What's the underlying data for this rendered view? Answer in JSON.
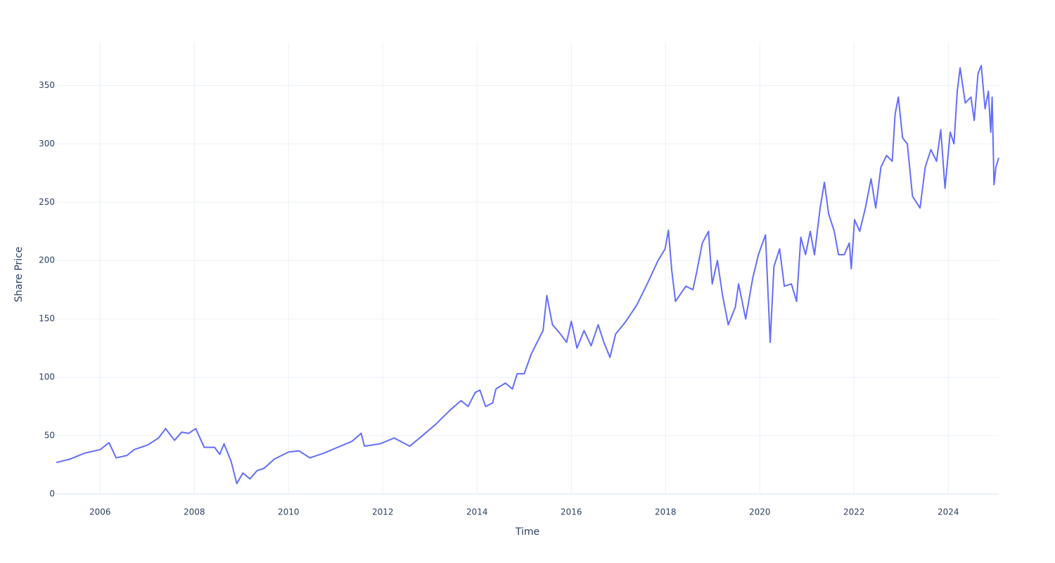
{
  "chart_data": {
    "type": "line",
    "x_label": "Time",
    "y_label": "Share Price",
    "color": "#636efa",
    "grid": true,
    "xlim": [
      2005.07,
      2025.07
    ],
    "xticks": [
      2006,
      2008,
      2010,
      2012,
      2014,
      2016,
      2018,
      2020,
      2022,
      2024
    ],
    "ylim": [
      0,
      387
    ],
    "yticks": [
      0,
      50,
      100,
      150,
      200,
      250,
      300,
      350
    ],
    "x": [
      2005.07,
      2005.37,
      2005.67,
      2006.0,
      2006.19,
      2006.34,
      2006.57,
      2006.72,
      2007.01,
      2007.24,
      2007.39,
      2007.58,
      2007.73,
      2007.88,
      2008.03,
      2008.21,
      2008.43,
      2008.54,
      2008.63,
      2008.78,
      2008.9,
      2009.03,
      2009.18,
      2009.33,
      2009.48,
      2009.7,
      2010.0,
      2010.22,
      2010.45,
      2010.75,
      2011.04,
      2011.34,
      2011.54,
      2011.61,
      2011.94,
      2012.24,
      2012.57,
      2012.84,
      2013.13,
      2013.43,
      2013.66,
      2013.81,
      2013.96,
      2014.06,
      2014.18,
      2014.33,
      2014.4,
      2014.6,
      2014.75,
      2014.85,
      2015.0,
      2015.15,
      2015.3,
      2015.4,
      2015.48,
      2015.6,
      2015.75,
      2015.9,
      2016.0,
      2016.12,
      2016.27,
      2016.42,
      2016.57,
      2016.69,
      2016.82,
      2016.94,
      2017.16,
      2017.39,
      2017.61,
      2017.84,
      2017.99,
      2018.06,
      2018.13,
      2018.21,
      2018.43,
      2018.58,
      2018.66,
      2018.78,
      2018.91,
      2018.99,
      2019.1,
      2019.21,
      2019.33,
      2019.48,
      2019.55,
      2019.7,
      2019.85,
      2019.97,
      2020.12,
      2020.22,
      2020.3,
      2020.42,
      2020.52,
      2020.67,
      2020.78,
      2020.87,
      2020.97,
      2021.07,
      2021.16,
      2021.28,
      2021.37,
      2021.46,
      2021.58,
      2021.67,
      2021.79,
      2021.9,
      2021.94,
      2022.01,
      2022.12,
      2022.24,
      2022.36,
      2022.46,
      2022.57,
      2022.69,
      2022.81,
      2022.87,
      2022.94,
      2023.03,
      2023.13,
      2023.24,
      2023.4,
      2023.51,
      2023.63,
      2023.75,
      2023.84,
      2023.93,
      2024.04,
      2024.12,
      2024.19,
      2024.25,
      2024.36,
      2024.48,
      2024.55,
      2024.63,
      2024.7,
      2024.78,
      2024.85,
      2024.9,
      2024.93,
      2024.97,
      2025.01,
      2025.07
    ],
    "values": [
      27,
      30,
      35,
      38,
      44,
      31,
      33,
      38,
      42,
      48,
      56,
      46,
      53,
      52,
      56,
      40,
      40,
      34,
      43,
      28,
      9,
      18,
      13,
      20,
      22,
      30,
      36,
      37,
      31,
      35,
      40,
      45,
      52,
      41,
      43,
      48,
      41,
      50,
      60,
      72,
      80,
      75,
      87,
      89,
      75,
      78,
      90,
      95,
      90,
      103,
      103,
      120,
      132,
      140,
      170,
      145,
      138,
      130,
      148,
      125,
      140,
      127,
      145,
      130,
      117,
      137,
      148,
      162,
      180,
      200,
      210,
      226,
      192,
      165,
      178,
      175,
      190,
      215,
      225,
      180,
      200,
      170,
      145,
      160,
      180,
      150,
      185,
      205,
      222,
      130,
      195,
      210,
      178,
      180,
      165,
      220,
      205,
      225,
      205,
      245,
      267,
      240,
      225,
      205,
      205,
      215,
      193,
      235,
      225,
      245,
      270,
      245,
      280,
      290,
      285,
      325,
      340,
      305,
      300,
      255,
      245,
      280,
      295,
      285,
      312,
      262,
      310,
      300,
      345,
      365,
      335,
      340,
      320,
      360,
      367,
      330,
      345,
      310,
      340,
      265,
      280,
      288
    ]
  }
}
